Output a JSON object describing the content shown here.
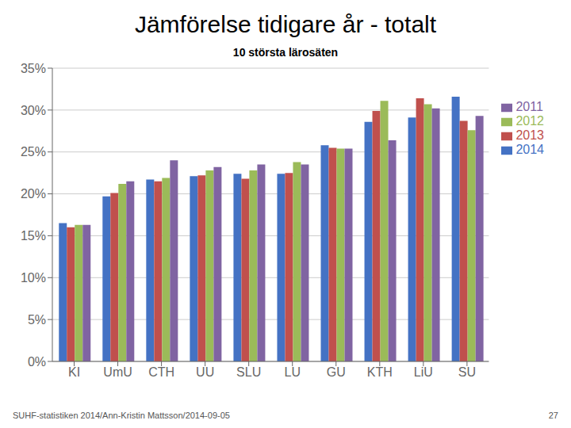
{
  "chart_data": {
    "type": "bar",
    "title": "Jämförelse tidigare år - totalt",
    "subtitle": "10 största lärosäten",
    "annotations": [
      "SUHF-statistiken 2014/Ann-Kristin Mattsson/2014-09-05",
      "27"
    ],
    "categories": [
      "KI",
      "UmU",
      "CTH",
      "UU",
      "SLU",
      "LU",
      "GU",
      "KTH",
      "LiU",
      "SU"
    ],
    "series": [
      {
        "name": "2014",
        "color": "#4472C4",
        "values": [
          0.165,
          0.197,
          0.217,
          0.221,
          0.224,
          0.224,
          0.258,
          0.286,
          0.291,
          0.316
        ]
      },
      {
        "name": "2013",
        "color": "#C0504D",
        "values": [
          0.16,
          0.201,
          0.215,
          0.222,
          0.218,
          0.225,
          0.255,
          0.299,
          0.314,
          0.287
        ]
      },
      {
        "name": "2012",
        "color": "#9BBB59",
        "values": [
          0.163,
          0.212,
          0.219,
          0.228,
          0.228,
          0.238,
          0.254,
          0.311,
          0.307,
          0.276
        ]
      },
      {
        "name": "2011",
        "color": "#8064A2",
        "values": [
          0.163,
          0.215,
          0.24,
          0.232,
          0.235,
          0.235,
          0.254,
          0.264,
          0.302,
          0.293
        ]
      }
    ],
    "ylim": [
      0,
      0.35
    ],
    "yticks": [
      {
        "value": 0,
        "label": "0%"
      },
      {
        "value": 0.05,
        "label": "5%"
      },
      {
        "value": 0.1,
        "label": "10%"
      },
      {
        "value": 0.15,
        "label": "15%"
      },
      {
        "value": 0.2,
        "label": "20%"
      },
      {
        "value": 0.25,
        "label": "25%"
      },
      {
        "value": 0.3,
        "label": "30%"
      },
      {
        "value": 0.35,
        "label": "35%"
      }
    ],
    "grid": true,
    "legend": "right"
  }
}
